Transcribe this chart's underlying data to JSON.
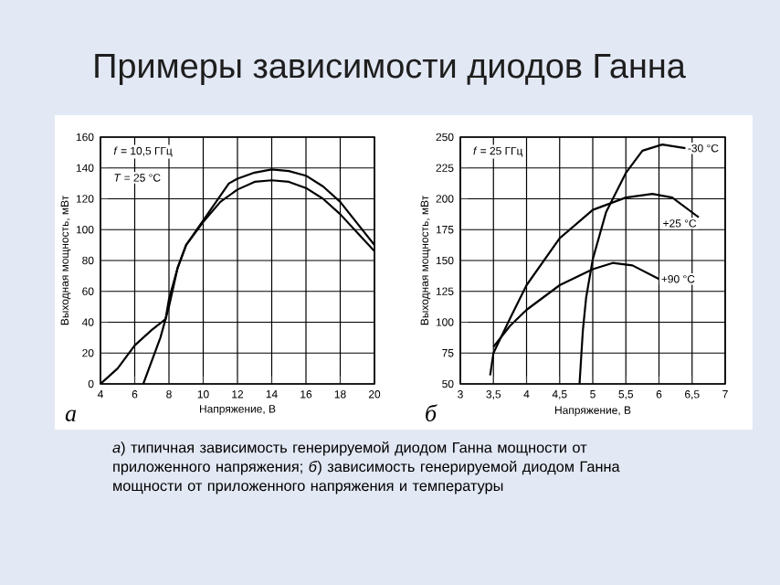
{
  "chart_data": [
    {
      "type": "line",
      "title": "Примеры зависимости диодов Ганна",
      "xlabel": "Напряжение, В",
      "ylabel": "Выходная мощность, мВт",
      "xlim": [
        4,
        20
      ],
      "xticks": [
        4,
        6,
        8,
        10,
        12,
        14,
        16,
        18,
        20
      ],
      "ylim": [
        0,
        160
      ],
      "yticks": [
        0,
        20,
        40,
        60,
        80,
        100,
        120,
        140,
        160
      ],
      "grid": true,
      "annotations": [
        "а",
        "*f* = 10,5 ГГц",
        "*T* = 25 °C",
        "*а*) типичная зависимость генерируемой диодом Ганна мощности от приложенного напряжения; *б*) зависимость генерируемой диодом Ганна мощности от приложенного напряжения и температуры"
      ],
      "series": [
        {
          "color": "#000000",
          "x": [
            4,
            5,
            6,
            7,
            7.8,
            8,
            8.5,
            9,
            10,
            11,
            11.5,
            12,
            13,
            14,
            15,
            16,
            17,
            18,
            19,
            20
          ],
          "values": [
            0,
            10,
            25,
            35,
            42,
            55,
            75,
            90,
            106,
            122,
            130,
            133,
            137,
            139,
            138,
            135,
            128,
            118,
            104,
            90
          ]
        },
        {
          "color": "#000000",
          "x": [
            6.5,
            7,
            7.5,
            8,
            8.5,
            9,
            10,
            11,
            12,
            13,
            14,
            15,
            16,
            17,
            18,
            19,
            20
          ],
          "values": [
            0,
            15,
            30,
            50,
            75,
            90,
            105,
            118,
            126,
            131,
            132,
            131,
            127,
            120,
            110,
            98,
            86
          ]
        }
      ]
    },
    {
      "type": "line",
      "xlabel": "Напряжение, В",
      "ylabel": "Выходная мощность, мВт",
      "xlim": [
        3,
        7
      ],
      "xticks": [
        3,
        {
          "value": 3.5,
          "label": "3,5"
        },
        4,
        {
          "value": 4.5,
          "label": "4,5"
        },
        5,
        {
          "value": 5.5,
          "label": "5,5"
        },
        6,
        {
          "value": 6.5,
          "label": "6,5"
        },
        7
      ],
      "ylim": [
        50,
        250
      ],
      "yticks": [
        50,
        75,
        100,
        125,
        150,
        175,
        200,
        225,
        250
      ],
      "grid": true,
      "annotations": [
        "б",
        "*f* = 25 ГГц"
      ],
      "series": [
        {
          "name": "-30 °C",
          "color": "#000000",
          "x": [
            4.8,
            4.85,
            4.9,
            5,
            5.2,
            5.5,
            5.75,
            6.05,
            6.4
          ],
          "values": [
            50,
            93,
            120,
            151,
            189,
            221,
            239,
            244,
            241
          ]
        },
        {
          "name": "+25 °C",
          "color": "#000000",
          "x": [
            3.45,
            3.5,
            3.75,
            4,
            4.5,
            5,
            5.5,
            5.9,
            6.2,
            6.6
          ],
          "values": [
            57,
            75,
            103,
            130,
            168,
            191,
            201,
            204,
            201,
            185
          ]
        },
        {
          "name": "+90 °C",
          "color": "#000000",
          "x": [
            3.5,
            3.75,
            4,
            4.5,
            5,
            5.3,
            5.6,
            6
          ],
          "values": [
            80,
            97,
            110,
            130,
            143,
            148,
            146,
            135
          ]
        }
      ]
    }
  ]
}
